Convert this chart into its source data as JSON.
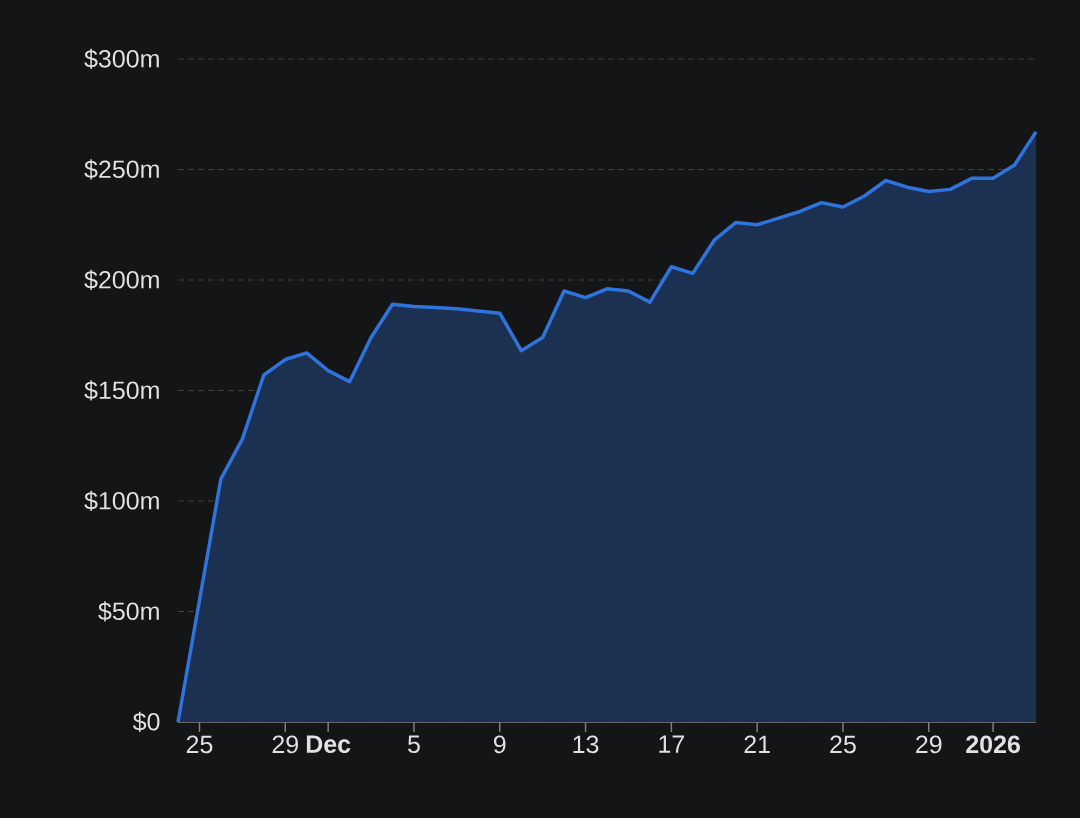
{
  "chart_data": {
    "type": "area",
    "x": [
      "2025-11-24",
      "2025-11-25",
      "2025-11-26",
      "2025-11-27",
      "2025-11-28",
      "2025-11-29",
      "2025-11-30",
      "2025-12-01",
      "2025-12-02",
      "2025-12-03",
      "2025-12-04",
      "2025-12-05",
      "2025-12-06",
      "2025-12-07",
      "2025-12-08",
      "2025-12-09",
      "2025-12-10",
      "2025-12-11",
      "2025-12-12",
      "2025-12-13",
      "2025-12-14",
      "2025-12-15",
      "2025-12-16",
      "2025-12-17",
      "2025-12-18",
      "2025-12-19",
      "2025-12-20",
      "2025-12-21",
      "2025-12-22",
      "2025-12-23",
      "2025-12-24",
      "2025-12-25",
      "2025-12-26",
      "2025-12-27",
      "2025-12-28",
      "2025-12-29",
      "2025-12-30",
      "2025-12-31",
      "2026-01-01",
      "2026-01-02",
      "2026-01-03"
    ],
    "series": [
      {
        "color": "#2f74dd",
        "values": [
          0,
          55,
          110,
          128,
          157,
          164,
          167,
          159,
          154,
          174,
          189,
          188,
          187.5,
          187,
          186,
          185,
          168,
          174,
          195,
          192,
          196,
          195,
          190,
          206,
          203,
          218,
          226,
          225,
          228,
          231,
          235,
          233,
          238,
          245,
          242,
          240,
          241,
          246,
          246,
          252,
          267
        ]
      }
    ],
    "xlim": [
      "2025-11-24",
      "2026-01-03"
    ],
    "xticks": [
      {
        "value": "2025-11-25",
        "label": "25"
      },
      {
        "value": "2025-11-29",
        "label": "29"
      },
      {
        "value": "2025-12-01",
        "label": "**Dec**"
      },
      {
        "value": "2025-12-05",
        "label": "5"
      },
      {
        "value": "2025-12-09",
        "label": "9"
      },
      {
        "value": "2025-12-13",
        "label": "13"
      },
      {
        "value": "2025-12-17",
        "label": "17"
      },
      {
        "value": "2025-12-21",
        "label": "21"
      },
      {
        "value": "2025-12-25",
        "label": "25"
      },
      {
        "value": "2025-12-29",
        "label": "29"
      },
      {
        "value": "2026-01-01",
        "label": "**2026**"
      }
    ],
    "ylim": [
      0,
      300
    ],
    "yticks": [
      {
        "value": 0,
        "label": "$0"
      },
      {
        "value": 50,
        "label": "$50m"
      },
      {
        "value": 100,
        "label": "$100m"
      },
      {
        "value": 150,
        "label": "$150m"
      },
      {
        "value": 200,
        "label": "$200m"
      },
      {
        "value": 250,
        "label": "$250m"
      },
      {
        "value": 300,
        "label": "$300m"
      }
    ],
    "grid": "y"
  }
}
